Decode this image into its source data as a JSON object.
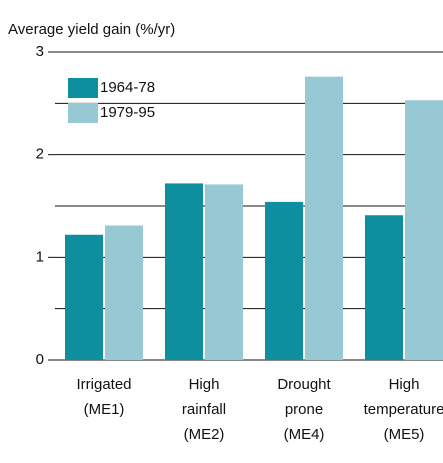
{
  "chart_data": {
    "type": "bar",
    "y_label": "Average yield gain (%/yr)",
    "categories": [
      [
        "Irrigated",
        "(ME1)"
      ],
      [
        "High",
        "rainfall",
        "(ME2)"
      ],
      [
        "Drought",
        "prone",
        "(ME4)"
      ],
      [
        "High",
        "temperature",
        "(ME5)"
      ]
    ],
    "series": [
      {
        "name": "1964-78",
        "color": "#0e8fa0",
        "values": [
          1.22,
          1.72,
          1.54,
          1.41
        ]
      },
      {
        "name": "1979-95",
        "color": "#97c9d5",
        "values": [
          1.31,
          1.71,
          2.76,
          2.53
        ]
      }
    ],
    "ylim": [
      0,
      3
    ],
    "yticks": [
      0,
      1,
      2,
      3
    ],
    "minor_gridlines": [
      0.5,
      1.5,
      2.5
    ],
    "grid": true,
    "legend": "upper left"
  }
}
